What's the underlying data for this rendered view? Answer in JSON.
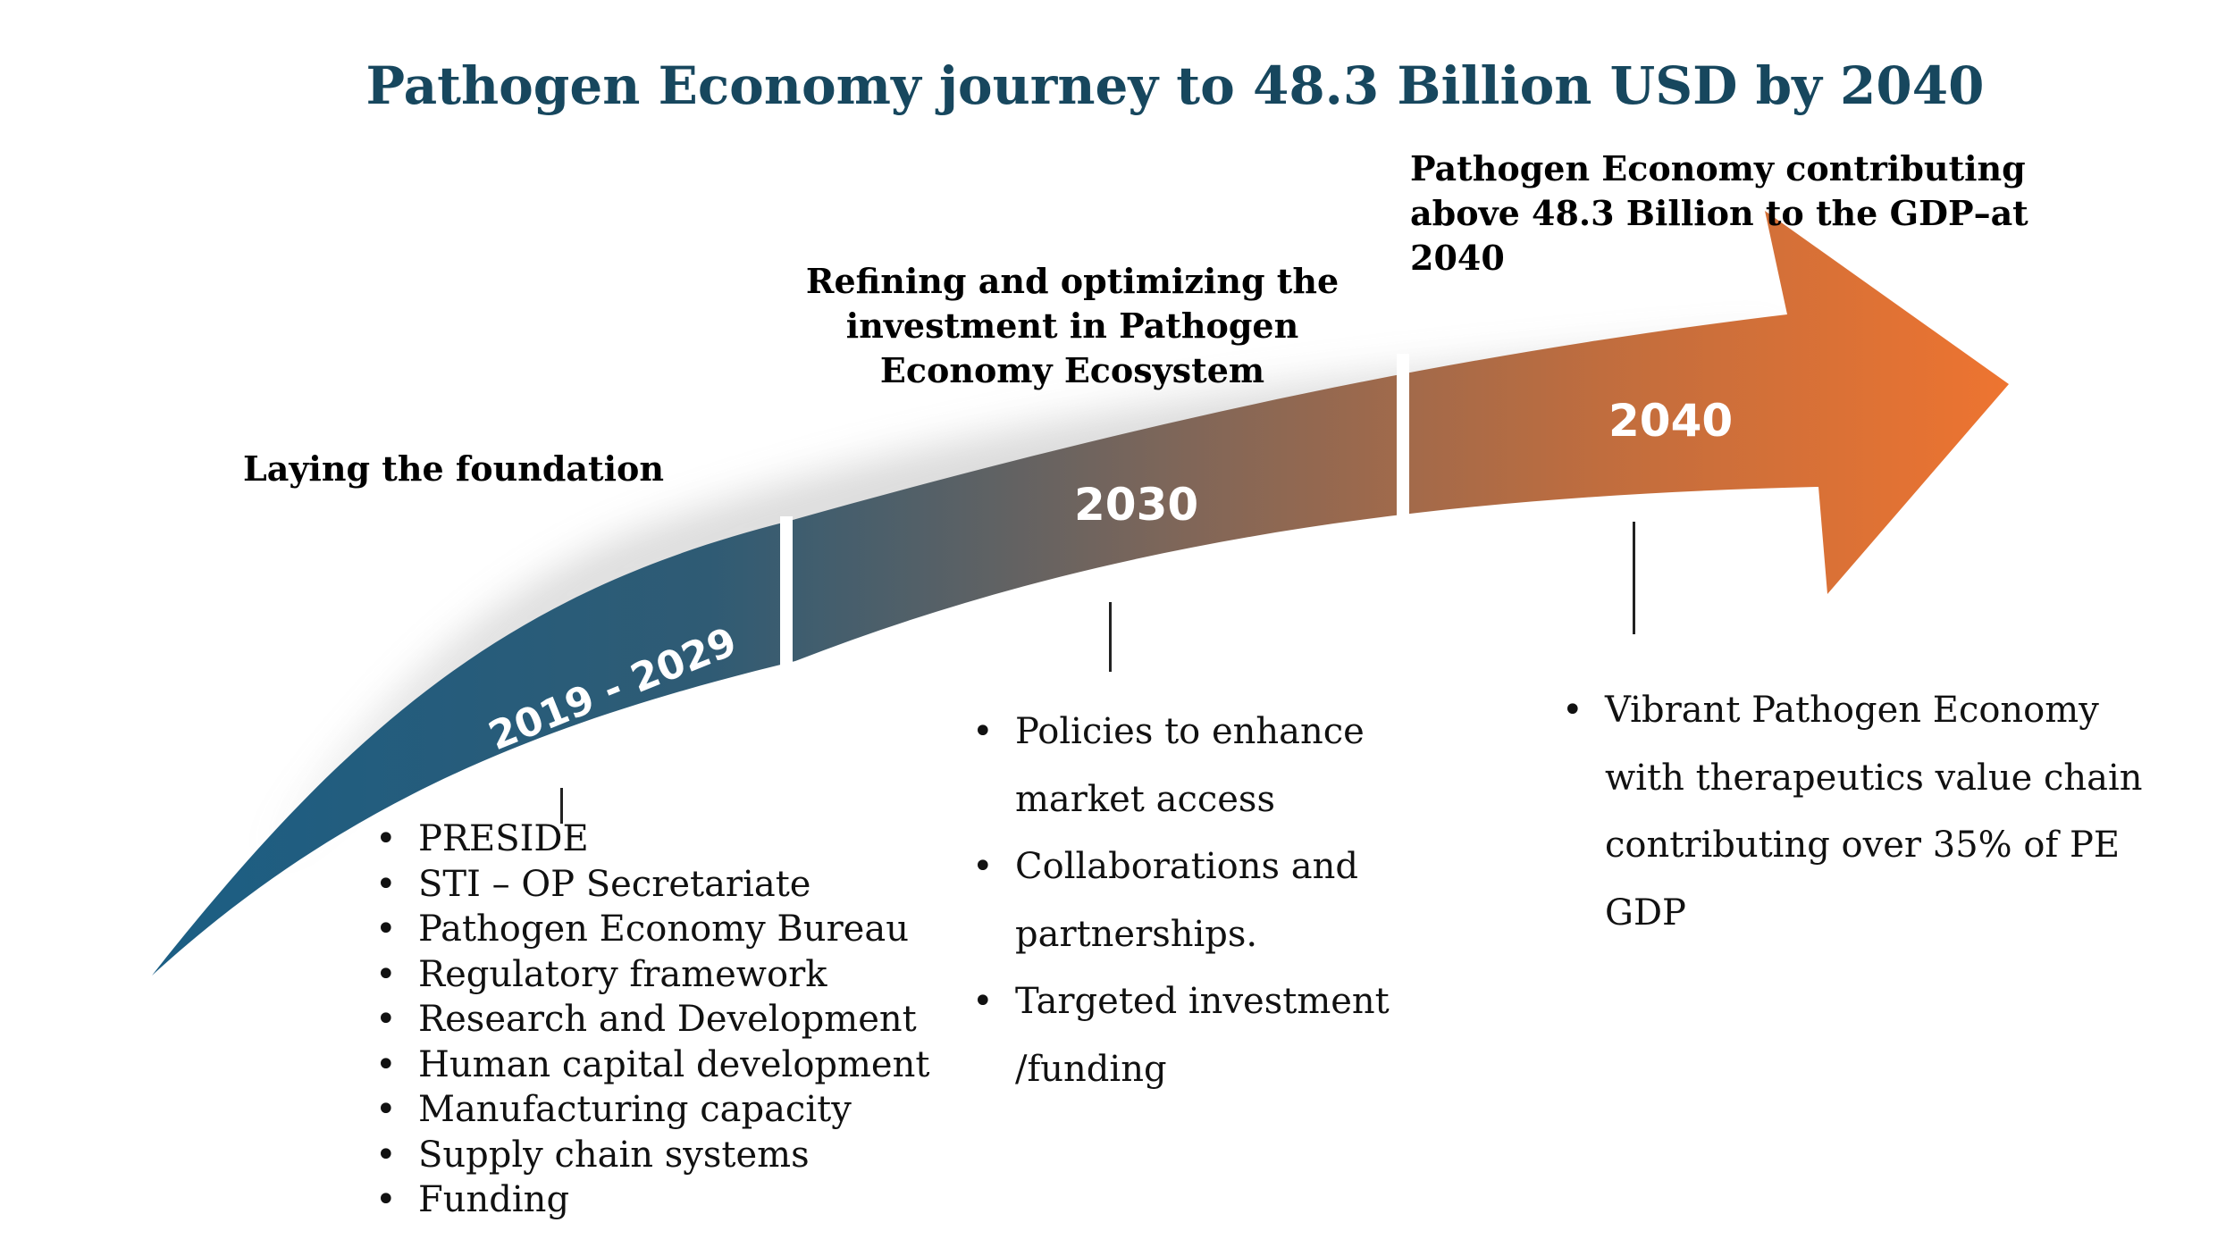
{
  "title": "Pathogen Economy journey to 48.3 Billion USD by 2040",
  "colors": {
    "title": "#17475e",
    "arrow_start": "#1b5e84",
    "arrow_mid": "#6f6a66",
    "arrow_end": "#e87430"
  },
  "phases": [
    {
      "period": "2019 - 2029",
      "heading": "Laying the foundation",
      "items": [
        "PRESIDE",
        "STI – OP Secretariate",
        "Pathogen Economy Bureau",
        "Regulatory framework",
        "Research and Development",
        "Human capital development",
        "Manufacturing capacity",
        "Supply chain systems",
        "Funding"
      ]
    },
    {
      "period": "2030",
      "heading": "Refining and optimizing the investment in Pathogen Economy Ecosystem",
      "items": [
        "Policies to enhance market access",
        "Collaborations and partnerships.",
        "Targeted investment /funding"
      ]
    },
    {
      "period": "2040",
      "heading": "Pathogen Economy contributing above 48.3 Billion to the GDP–at 2040",
      "items": [
        "Vibrant Pathogen Economy with therapeutics value chain contributing over 35% of PE GDP"
      ]
    }
  ]
}
